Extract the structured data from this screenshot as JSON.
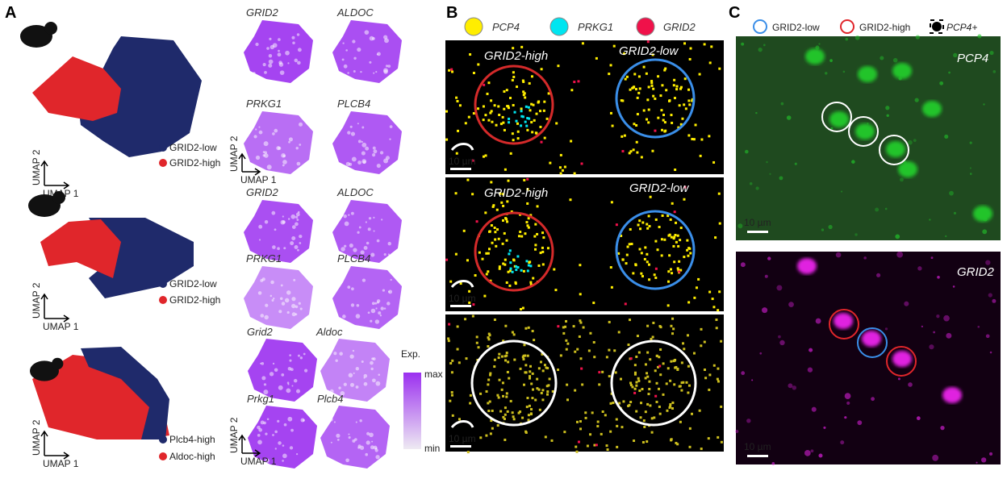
{
  "panels": {
    "a": "A",
    "b": "B",
    "c": "C"
  },
  "umap": {
    "axis1": "UMAP 1",
    "axis2": "UMAP 2"
  },
  "panel_a": {
    "rows": [
      {
        "species": "monkey",
        "legend": [
          "GRID2-low",
          "GRID2-high"
        ],
        "genes": [
          "GRID2",
          "ALDOC",
          "PRKG1",
          "PLCB4"
        ]
      },
      {
        "species": "marmoset",
        "legend": [
          "GRID2-low",
          "GRID2-high"
        ],
        "genes": [
          "GRID2",
          "ALDOC",
          "PRKG1",
          "PLCB4"
        ]
      },
      {
        "species": "mouse",
        "legend": [
          "Plcb4-high",
          "Aldoc-high"
        ],
        "genes": [
          "Grid2",
          "Aldoc",
          "Prkg1",
          "Plcb4"
        ]
      }
    ],
    "colorbar": {
      "title": "Exp.",
      "max": "max",
      "min": "min"
    },
    "colors": {
      "low": "#1f2a6b",
      "high": "#e0262b",
      "expression": "#9b30f0"
    }
  },
  "panel_b": {
    "legend": [
      {
        "label": "PCP4",
        "color": "#ffee00"
      },
      {
        "label": "PRKG1",
        "color": "#00e5f0"
      },
      {
        "label": "GRID2",
        "color": "#f0114a"
      }
    ],
    "images": [
      {
        "species": "monkey",
        "left": "GRID2-high",
        "right": "GRID2-low",
        "scale": "10 µm"
      },
      {
        "species": "marmoset",
        "left": "GRID2-high",
        "right": "GRID2-low",
        "scale": "10 µm"
      },
      {
        "species": "mouse",
        "scale": "10 µm"
      }
    ]
  },
  "panel_c": {
    "legend": [
      {
        "label": "GRID2-low",
        "color": "#3a8ee8"
      },
      {
        "label": "GRID2-high",
        "color": "#e0262b"
      },
      {
        "label": "PCP4+"
      }
    ],
    "images": [
      {
        "channel": "PCP4",
        "color": "#22c42a",
        "scale": "10 µm"
      },
      {
        "channel": "GRID2",
        "color": "#e020e0",
        "scale": "10 µm"
      }
    ]
  }
}
